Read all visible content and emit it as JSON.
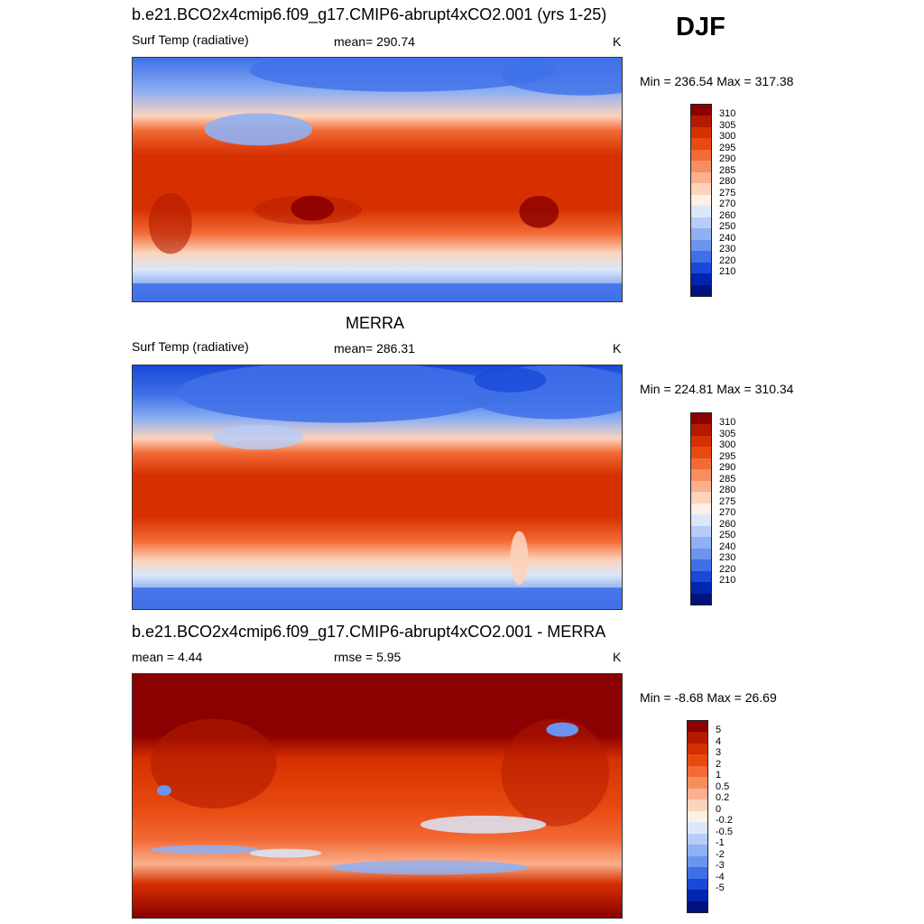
{
  "season": "DJF",
  "panels": [
    {
      "title": "b.e21.BCO2x4cmip6.f09_g17.CMIP6-abrupt4xCO2.001 (yrs 1-25)",
      "left_label": "Surf Temp (radiative)",
      "center_label": "mean= 290.74",
      "units": "K",
      "minmax": "Min = 236.54 Max = 317.38",
      "colorbar_labels": [
        "310",
        "305",
        "300",
        "295",
        "290",
        "285",
        "280",
        "275",
        "270",
        "260",
        "250",
        "240",
        "230",
        "220",
        "210"
      ],
      "colors": [
        "#8b0000",
        "#b31a00",
        "#d63000",
        "#e84a10",
        "#f26a35",
        "#f78e5f",
        "#fab08e",
        "#fcd3bb",
        "#fdf0e4",
        "#dbe7fb",
        "#b7ccf7",
        "#8fb0f2",
        "#6a94ee",
        "#3f70e8",
        "#1a48d8",
        "#0025b0",
        "#00127e"
      ]
    },
    {
      "title": "MERRA",
      "left_label": "Surf Temp (radiative)",
      "center_label": "mean= 286.31",
      "units": "K",
      "minmax": "Min = 224.81 Max = 310.34",
      "colorbar_labels": [
        "310",
        "305",
        "300",
        "295",
        "290",
        "285",
        "280",
        "275",
        "270",
        "260",
        "250",
        "240",
        "230",
        "220",
        "210"
      ],
      "colors": [
        "#8b0000",
        "#b31a00",
        "#d63000",
        "#e84a10",
        "#f26a35",
        "#f78e5f",
        "#fab08e",
        "#fcd3bb",
        "#fdf0e4",
        "#dbe7fb",
        "#b7ccf7",
        "#8fb0f2",
        "#6a94ee",
        "#3f70e8",
        "#1a48d8",
        "#0025b0",
        "#00127e"
      ]
    },
    {
      "title": "b.e21.BCO2x4cmip6.f09_g17.CMIP6-abrupt4xCO2.001 - MERRA",
      "left_label": "mean =   4.44",
      "center_label": "rmse =   5.95",
      "units": "K",
      "minmax": "Min =  -8.68 Max =  26.69",
      "colorbar_labels": [
        "5",
        "4",
        "3",
        "2",
        "1",
        "0.5",
        "0.2",
        "0",
        "-0.2",
        "-0.5",
        "-1",
        "-2",
        "-3",
        "-4",
        "-5"
      ],
      "colors": [
        "#8b0000",
        "#b31a00",
        "#d63000",
        "#e84a10",
        "#f26a35",
        "#f78e5f",
        "#fab08e",
        "#fcd3bb",
        "#fdf0e4",
        "#dbe7fb",
        "#b7ccf7",
        "#8fb0f2",
        "#6a94ee",
        "#3f70e8",
        "#1a48d8",
        "#0025b0",
        "#00127e"
      ]
    }
  ]
}
